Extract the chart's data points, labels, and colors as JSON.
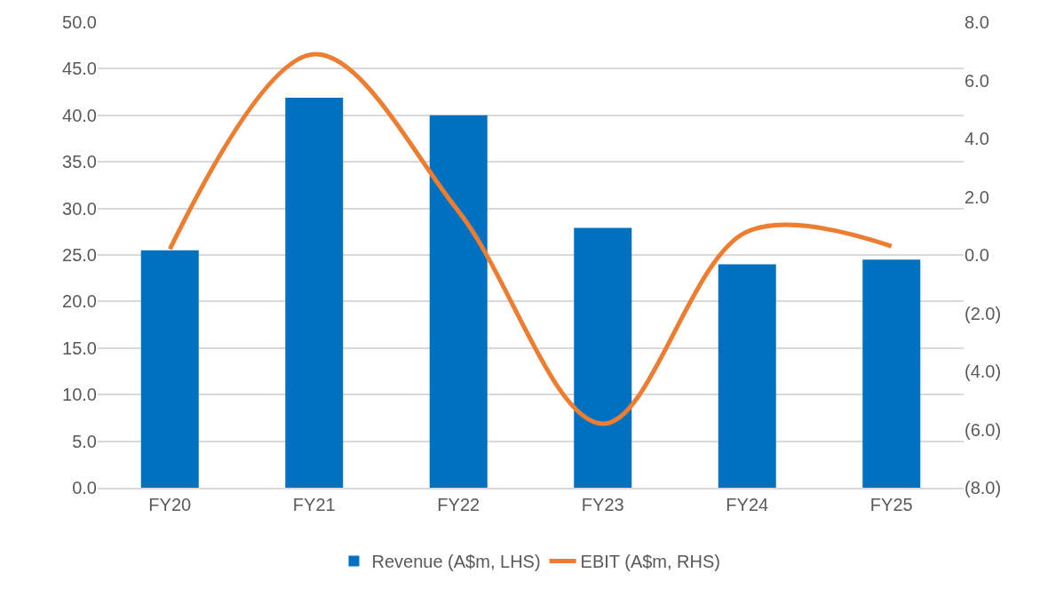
{
  "chart_data": {
    "type": "bar",
    "categories": [
      "FY20",
      "FY21",
      "FY22",
      "FY23",
      "FY24",
      "FY25"
    ],
    "series": [
      {
        "name": "Revenue (A$m, LHS)",
        "color": "#0070c0",
        "values": [
          25.5,
          41.9,
          40.0,
          27.9,
          24.0,
          24.5
        ]
      },
      {
        "name": "EBIT (A$m, RHS)",
        "type": "line",
        "axis": "y2",
        "color": "#ed7d31",
        "values": [
          0.2,
          6.9,
          1.5,
          -5.8,
          0.8,
          0.3
        ]
      }
    ],
    "ylim": [
      0,
      50
    ],
    "yticks": [
      {
        "value": 0,
        "label": "0.0"
      },
      {
        "value": 5,
        "label": "5.0"
      },
      {
        "value": 10,
        "label": "10.0"
      },
      {
        "value": 15,
        "label": "15.0"
      },
      {
        "value": 20,
        "label": "20.0"
      },
      {
        "value": 25,
        "label": "25.0"
      },
      {
        "value": 30,
        "label": "30.0"
      },
      {
        "value": 35,
        "label": "35.0"
      },
      {
        "value": 40,
        "label": "40.0"
      },
      {
        "value": 45,
        "label": "45.0"
      },
      {
        "value": 50,
        "label": "50.0"
      }
    ],
    "y2lim": [
      -8,
      8
    ],
    "y2ticks": [
      {
        "value": -8,
        "label": "(8.0)"
      },
      {
        "value": -6,
        "label": "(6.0)"
      },
      {
        "value": -4,
        "label": "(4.0)"
      },
      {
        "value": -2,
        "label": "(2.0)"
      },
      {
        "value": 0,
        "label": "0.0"
      },
      {
        "value": 2,
        "label": "2.0"
      },
      {
        "value": 4,
        "label": "4.0"
      },
      {
        "value": 6,
        "label": "6.0"
      },
      {
        "value": 8,
        "label": "8.0"
      }
    ],
    "grid": "y",
    "legend": "bottom",
    "marker": "none",
    "line_style": "solid"
  }
}
